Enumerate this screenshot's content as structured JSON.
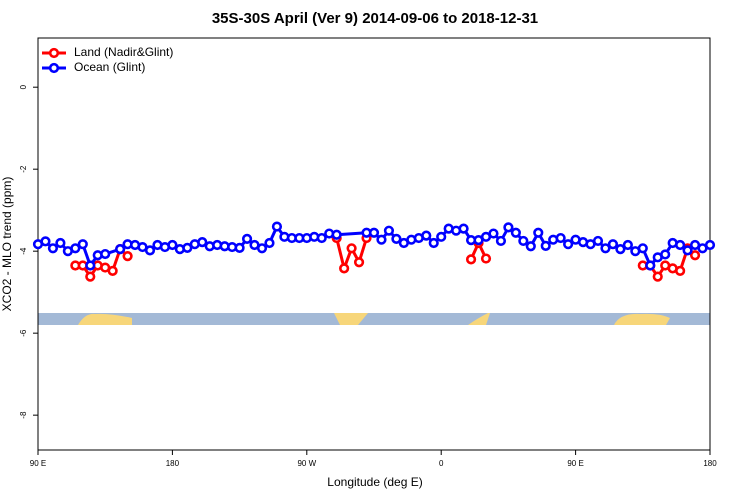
{
  "chart_data": {
    "type": "line",
    "title": "35S-30S April (Ver 9)   2014-09-06 to 2018-12-31",
    "xlabel": "Longitude (deg E)",
    "ylabel": "XCO2 - MLO trend (ppm)",
    "xlim": [
      90,
      540
    ],
    "ylim": [
      -8.85,
      1.2
    ],
    "xticks": [
      {
        "value": 90,
        "label": "90 E"
      },
      {
        "value": 180,
        "label": "180"
      },
      {
        "value": 270,
        "label": "90 W"
      },
      {
        "value": 360,
        "label": "0"
      },
      {
        "value": 450,
        "label": "90 E"
      },
      {
        "value": 540,
        "label": "180"
      }
    ],
    "yticks": [
      0,
      -2,
      -4,
      -6,
      -8
    ],
    "legend": "top-left",
    "series": [
      {
        "name": "Land (Nadir&Glint)",
        "color": "#ff0000",
        "x": [
          115,
          120,
          125,
          130,
          135,
          140,
          145,
          150,
          200,
          290,
          295,
          300,
          305,
          310,
          350,
          380,
          385,
          390,
          450,
          495,
          500,
          505,
          510,
          515,
          520,
          525,
          530
        ],
        "values": [
          -4.35,
          -4.35,
          -4.62,
          -4.35,
          -4.4,
          -4.48,
          -3.95,
          -4.12,
          null,
          -3.68,
          -4.42,
          -3.93,
          -4.27,
          -3.68,
          null,
          -4.2,
          -3.8,
          -4.18,
          null,
          -4.35,
          -4.35,
          -4.62,
          -4.35,
          -4.42,
          -4.48,
          -3.93,
          -4.1
        ]
      },
      {
        "name": "Ocean (Glint)",
        "color": "#0000ff",
        "x": [
          90,
          95,
          100,
          105,
          110,
          115,
          120,
          125,
          130,
          135,
          145,
          150,
          155,
          160,
          165,
          170,
          175,
          180,
          185,
          190,
          195,
          200,
          205,
          210,
          215,
          220,
          225,
          230,
          235,
          240,
          245,
          250,
          255,
          260,
          265,
          270,
          275,
          280,
          285,
          290,
          310,
          315,
          320,
          325,
          330,
          335,
          340,
          345,
          350,
          355,
          360,
          365,
          370,
          375,
          380,
          385,
          390,
          395,
          400,
          405,
          410,
          415,
          420,
          425,
          430,
          435,
          440,
          445,
          450,
          455,
          460,
          465,
          470,
          475,
          480,
          485,
          490,
          495,
          500,
          505,
          510,
          515,
          520,
          525,
          530,
          535,
          540
        ],
        "values": [
          -3.83,
          -3.76,
          -3.93,
          -3.8,
          -4.0,
          -3.93,
          -3.83,
          -4.35,
          -4.1,
          -4.07,
          -3.95,
          -3.83,
          -3.85,
          -3.9,
          -3.98,
          -3.85,
          -3.9,
          -3.85,
          -3.95,
          -3.92,
          -3.83,
          -3.78,
          -3.88,
          -3.85,
          -3.88,
          -3.9,
          -3.92,
          -3.7,
          -3.85,
          -3.93,
          -3.8,
          -3.4,
          -3.65,
          -3.68,
          -3.68,
          -3.68,
          -3.65,
          -3.68,
          -3.57,
          -3.6,
          -3.55,
          -3.55,
          -3.72,
          -3.5,
          -3.7,
          -3.8,
          -3.72,
          -3.68,
          -3.62,
          -3.8,
          -3.65,
          -3.45,
          -3.5,
          -3.45,
          -3.73,
          -3.73,
          -3.65,
          -3.57,
          -3.75,
          -3.42,
          -3.55,
          -3.75,
          -3.88,
          -3.55,
          -3.87,
          -3.72,
          -3.68,
          -3.83,
          -3.72,
          -3.78,
          -3.83,
          -3.75,
          -3.93,
          -3.83,
          -3.95,
          -3.85,
          -4.0,
          -3.93,
          -4.35,
          -4.15,
          -4.08,
          -3.8,
          -3.85,
          -3.98,
          -3.85,
          -3.93,
          -3.85
        ]
      }
    ]
  }
}
